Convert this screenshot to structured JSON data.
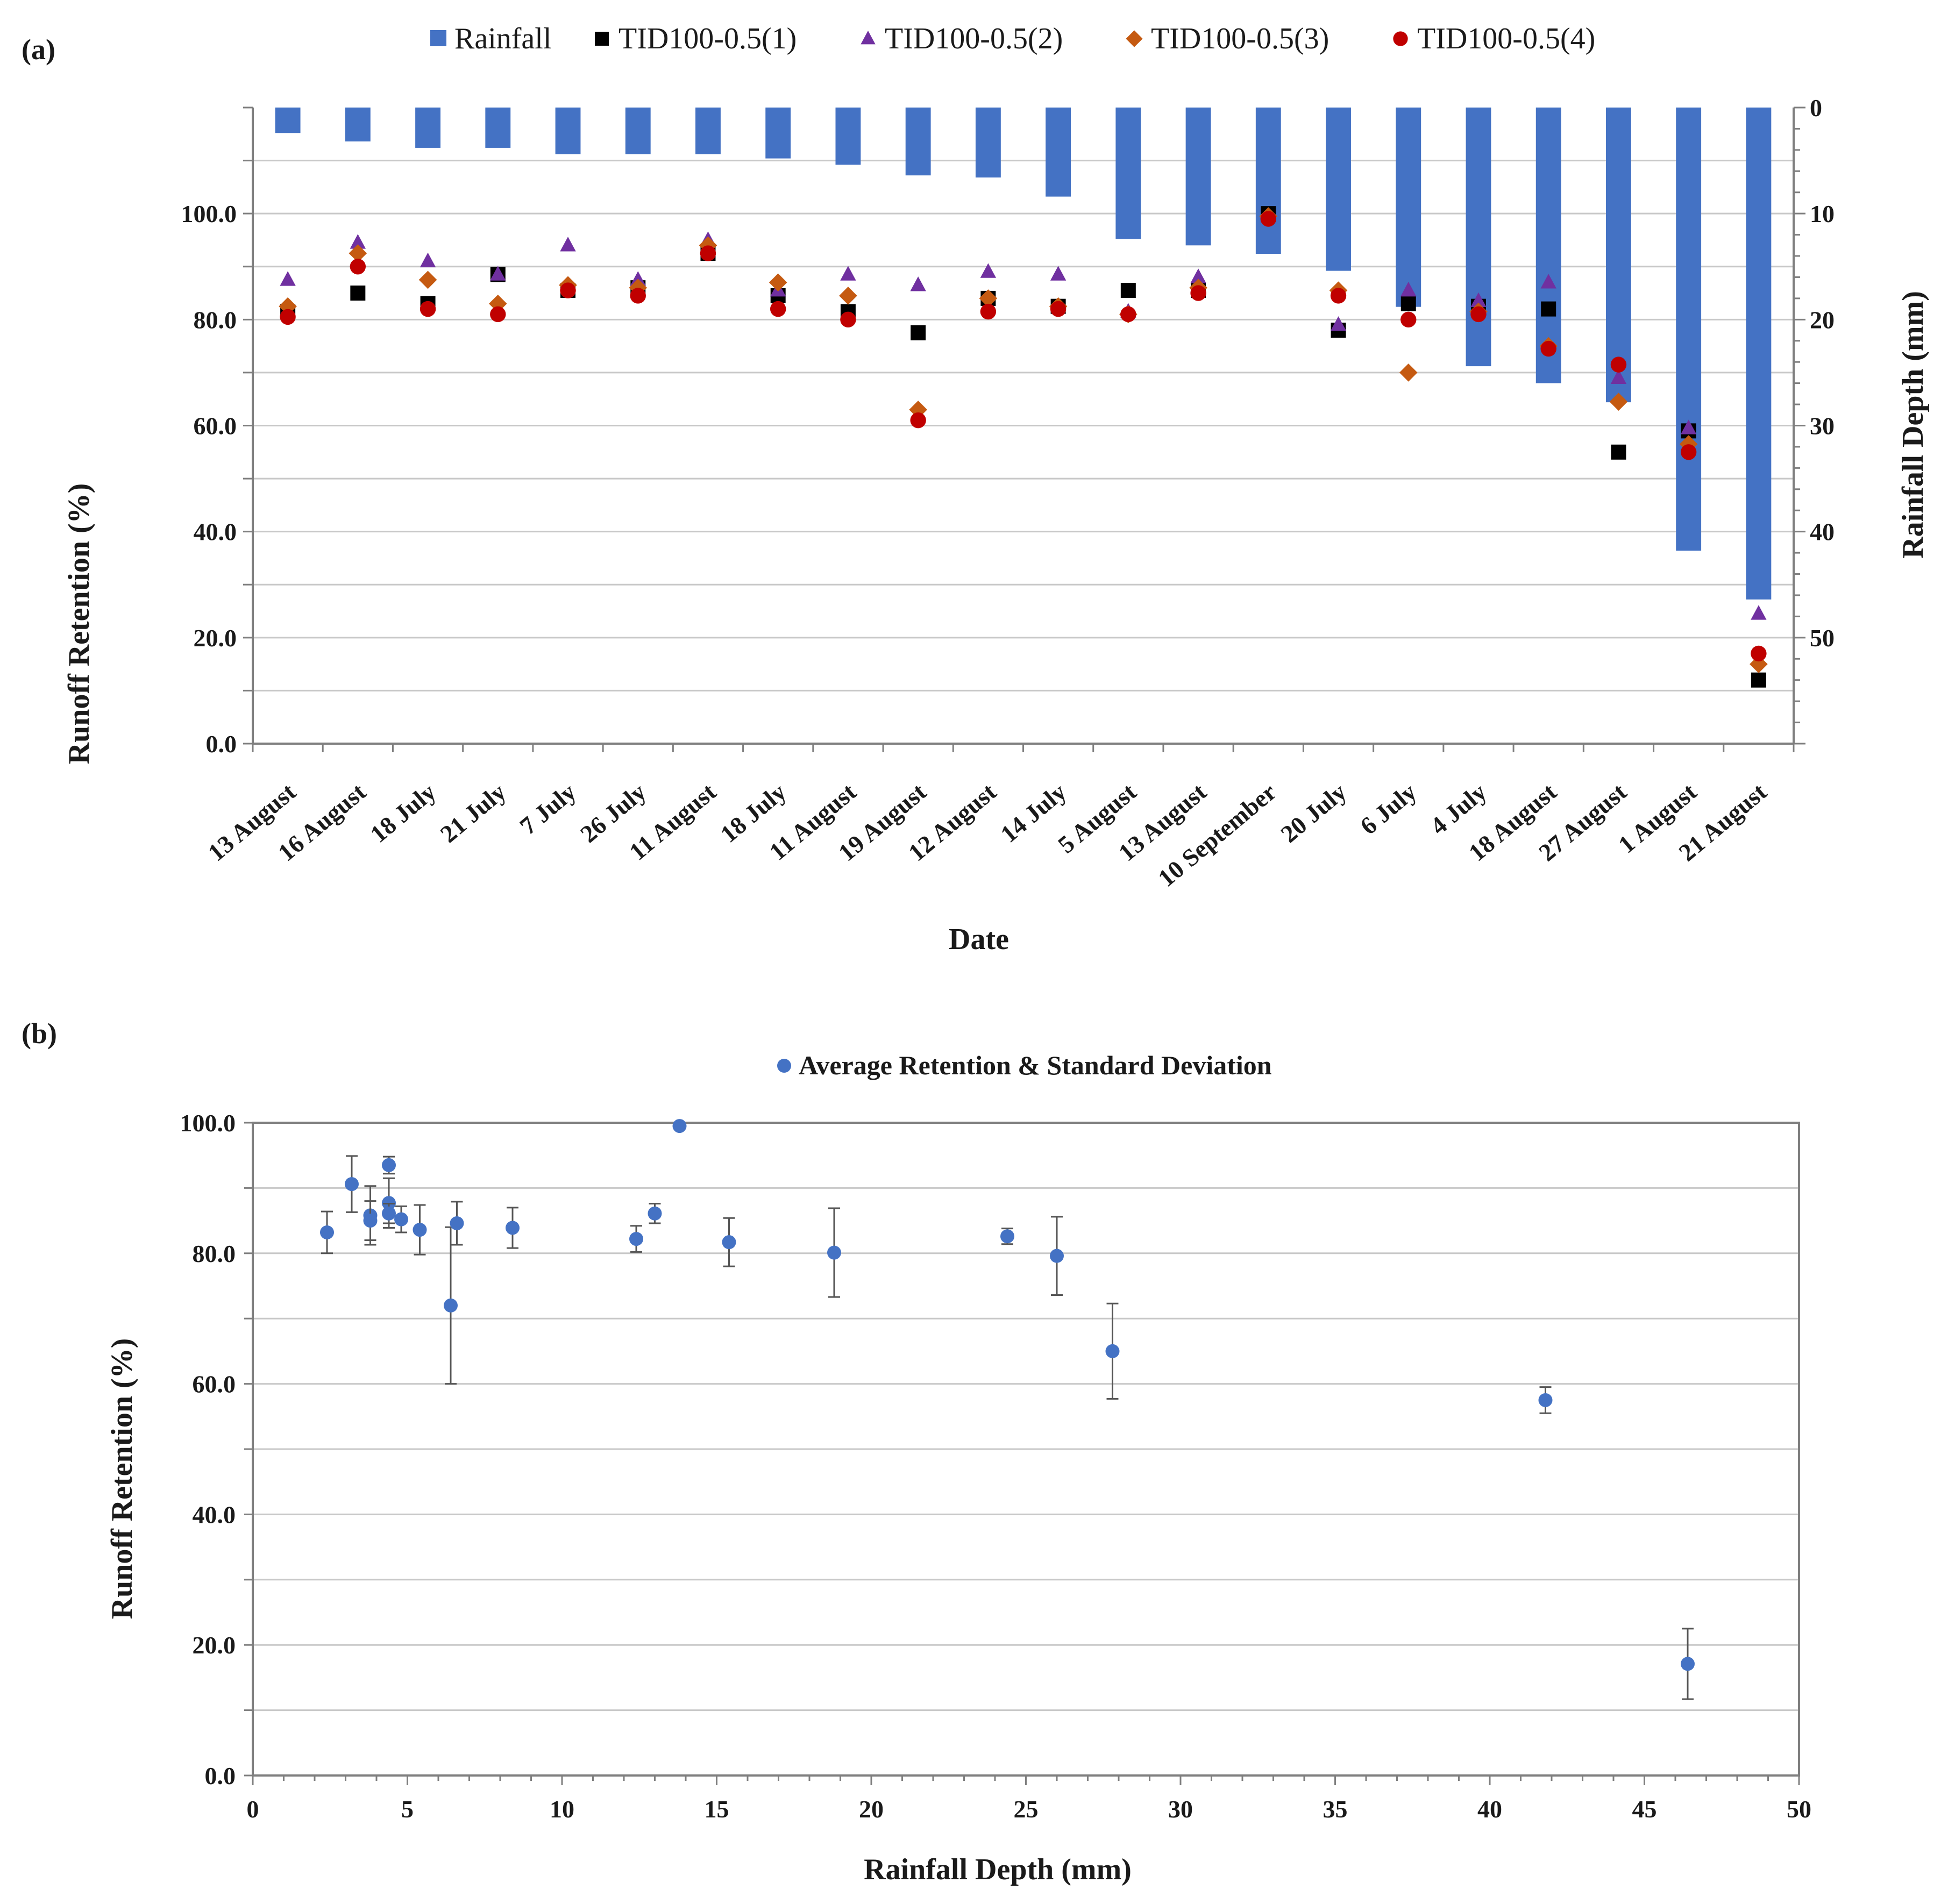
{
  "figure": {
    "panel_a_label": "(a)",
    "panel_b_label": "(b)"
  },
  "colors": {
    "rainfall": "#4472C4",
    "s1": "#000000",
    "s2": "#7030A0",
    "s3": "#C55A11",
    "s4": "#C00000",
    "avg": "#4472C4"
  },
  "chart_data": [
    {
      "panel": "a",
      "type": "bar+scatter",
      "xlabel": "Date",
      "ylabel_left": "Runoff Retention (%)",
      "ylabel_right": "Rainfall Depth (mm)",
      "ylim_left": [
        0,
        120
      ],
      "yticks_left": [
        "0.0",
        "20.0",
        "40.0",
        "60.0",
        "80.0",
        "100.0"
      ],
      "ylim_right_inverted": [
        0,
        60
      ],
      "yticks_right": [
        "0",
        "10",
        "20",
        "30",
        "40",
        "50"
      ],
      "categories": [
        "13 August",
        "16 August",
        "18 July",
        "21 July",
        "7 July",
        "26 July",
        "11 August",
        "18 July",
        "11 August",
        "19 August",
        "12 August",
        "14 July",
        "5 August",
        "13 August",
        "10  September",
        "20 July",
        "6 July",
        "4 July",
        "18 August",
        "27 August",
        "1 August",
        "21 August"
      ],
      "rainfall": {
        "name": "Rainfall",
        "values": [
          2.4,
          3.2,
          3.8,
          3.8,
          4.4,
          4.4,
          4.4,
          4.8,
          5.4,
          6.4,
          6.6,
          8.4,
          12.4,
          13.0,
          13.8,
          15.4,
          18.8,
          24.4,
          26.0,
          27.8,
          41.8,
          46.4
        ]
      },
      "series": [
        {
          "name": "TID100-0.5(1)",
          "marker": "square",
          "values": [
            81.5,
            85.0,
            83.0,
            88.5,
            85.5,
            86.0,
            92.5,
            84.5,
            81.5,
            77.5,
            84.0,
            82.5,
            85.5,
            85.5,
            100.0,
            78.0,
            83.0,
            82.5,
            82.0,
            55.0,
            59.0,
            12.0
          ]
        },
        {
          "name": "TID100-0.5(2)",
          "marker": "triangle",
          "values": [
            87.5,
            94.5,
            91.0,
            88.5,
            94.0,
            87.5,
            95.0,
            85.5,
            88.5,
            86.5,
            89.0,
            88.5,
            81.5,
            88.0,
            99.5,
            79.0,
            85.5,
            83.5,
            87.0,
            69.0,
            59.5,
            24.5
          ]
        },
        {
          "name": "TID100-0.5(3)",
          "marker": "diamond",
          "values": [
            82.5,
            92.5,
            87.5,
            83.0,
            86.5,
            86.0,
            94.0,
            87.0,
            84.5,
            63.0,
            84.0,
            82.5,
            81.0,
            86.0,
            99.5,
            85.5,
            70.0,
            81.5,
            75.0,
            64.5,
            56.5,
            15.0
          ]
        },
        {
          "name": "TID100-0.5(4)",
          "marker": "circle",
          "values": [
            80.5,
            90.0,
            82.0,
            81.0,
            85.5,
            84.5,
            92.5,
            82.0,
            80.0,
            61.0,
            81.5,
            82.0,
            81.0,
            85.0,
            99.0,
            84.5,
            80.0,
            81.0,
            74.5,
            71.5,
            55.0,
            17.0
          ]
        }
      ]
    },
    {
      "panel": "b",
      "type": "scatter",
      "legend": "Average Retention & Standard Deviation",
      "xlabel": "Rainfall Depth (mm)",
      "ylabel": "Runoff Retention (%)",
      "xlim": [
        0,
        50
      ],
      "xticks": [
        "0",
        "5",
        "10",
        "15",
        "20",
        "25",
        "30",
        "35",
        "40",
        "45",
        "50"
      ],
      "ylim": [
        0,
        100
      ],
      "yticks": [
        "0.0",
        "20.0",
        "40.0",
        "60.0",
        "80.0",
        "100.0"
      ],
      "points": [
        {
          "x": 2.4,
          "y": 83.2,
          "sd": 3.2
        },
        {
          "x": 3.2,
          "y": 90.6,
          "sd": 4.3
        },
        {
          "x": 3.8,
          "y": 85.8,
          "sd": 4.5
        },
        {
          "x": 3.8,
          "y": 85.0,
          "sd": 3.0
        },
        {
          "x": 4.4,
          "y": 93.5,
          "sd": 1.3
        },
        {
          "x": 4.4,
          "y": 87.7,
          "sd": 3.8
        },
        {
          "x": 4.4,
          "y": 86.1,
          "sd": 1.5
        },
        {
          "x": 4.8,
          "y": 85.2,
          "sd": 2.0
        },
        {
          "x": 5.4,
          "y": 83.6,
          "sd": 3.8
        },
        {
          "x": 6.4,
          "y": 72.0,
          "sd": 12.0
        },
        {
          "x": 6.6,
          "y": 84.6,
          "sd": 3.3
        },
        {
          "x": 8.4,
          "y": 83.9,
          "sd": 3.1
        },
        {
          "x": 12.4,
          "y": 82.2,
          "sd": 2.0
        },
        {
          "x": 13.0,
          "y": 86.1,
          "sd": 1.5
        },
        {
          "x": 13.8,
          "y": 99.5,
          "sd": 0.3
        },
        {
          "x": 15.4,
          "y": 81.7,
          "sd": 3.7
        },
        {
          "x": 18.8,
          "y": 80.1,
          "sd": 6.8
        },
        {
          "x": 24.4,
          "y": 82.6,
          "sd": 1.2
        },
        {
          "x": 26.0,
          "y": 79.6,
          "sd": 6.0
        },
        {
          "x": 27.8,
          "y": 65.0,
          "sd": 7.3
        },
        {
          "x": 41.8,
          "y": 57.5,
          "sd": 2.0
        },
        {
          "x": 46.4,
          "y": 17.1,
          "sd": 5.4
        }
      ]
    }
  ]
}
